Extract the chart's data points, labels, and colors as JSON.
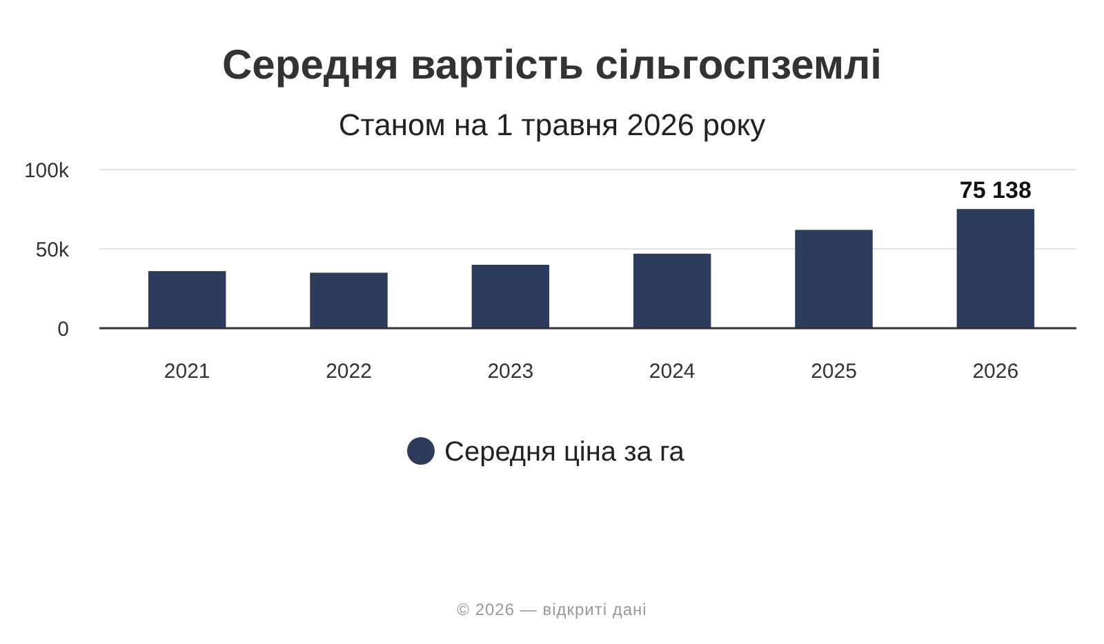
{
  "chart_data": {
    "type": "bar",
    "title": "Середня вартість сільгоспземлі",
    "subtitle": "Станом на 1 травня 2026 року",
    "categories": [
      "2021",
      "2022",
      "2023",
      "2024",
      "2025",
      "2026"
    ],
    "series": [
      {
        "name": "Середня ціна за га",
        "color": "#2d3b5c",
        "values": [
          36000,
          35000,
          40000,
          47000,
          62000,
          75138
        ],
        "value_labels": [
          null,
          null,
          null,
          null,
          null,
          "75 138"
        ]
      }
    ],
    "ylim": [
      0,
      100000
    ],
    "yticks": [
      {
        "value": 0,
        "label": "0"
      },
      {
        "value": 50000,
        "label": "50k"
      },
      {
        "value": 100000,
        "label": "100k"
      }
    ],
    "grid": "y",
    "legend": "bottom",
    "annotations": [
      "© 2026 — відкриті дані"
    ]
  }
}
